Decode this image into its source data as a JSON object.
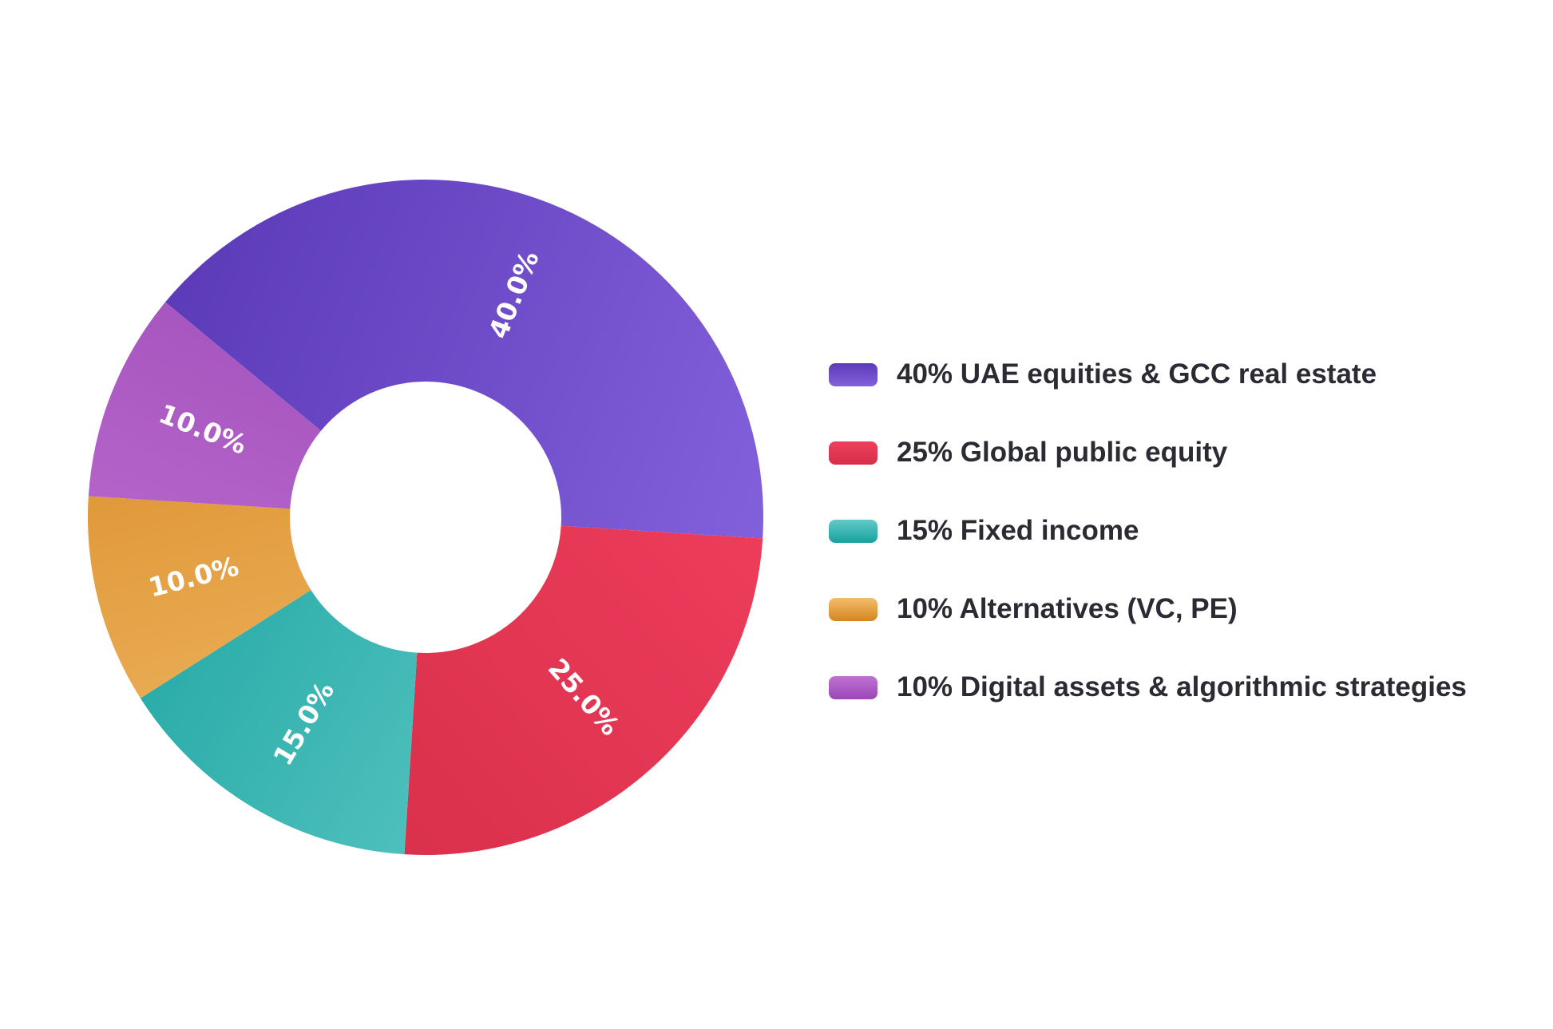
{
  "chart_data": {
    "type": "pie",
    "donut": true,
    "categories": [
      "40% UAE equities & GCC real estate",
      "25% Global public equity",
      "15% Fixed income",
      "10% Alternatives (VC, PE)",
      "10% Digital assets & algorithmic strategies"
    ],
    "values": [
      40,
      25,
      15,
      10,
      10
    ],
    "data_labels": [
      "40.0%",
      "25.0%",
      "15.0%",
      "10.0%",
      "10.0%"
    ],
    "colors": [
      [
        "#5b3ab8",
        "#8461dc"
      ],
      [
        "#f03f5e",
        "#d62e49"
      ],
      [
        "#62cbc8",
        "#17a19e"
      ],
      [
        "#f4bd6c",
        "#d5861f"
      ],
      [
        "#bf72d2",
        "#9b47b6"
      ]
    ],
    "legend_placement": "right"
  }
}
